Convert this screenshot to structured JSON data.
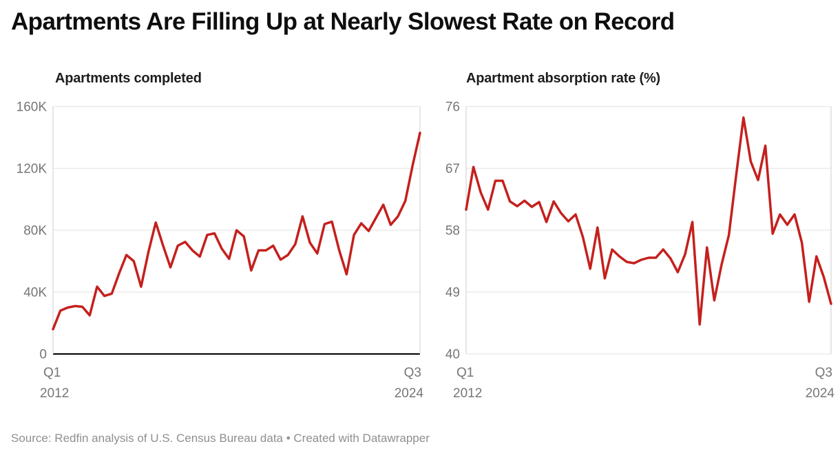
{
  "title": "Apartments Are Filling Up at Nearly Slowest Rate on Record",
  "footer": {
    "source": "Source: Redfin analysis of U.S. Census Bureau data • Created with Datawrapper"
  },
  "colors": {
    "line": "#c4201d",
    "grid": "#e2e2e2",
    "axis_edge": "#cccccc",
    "zero_baseline": "#000000",
    "tick_label": "#767676",
    "chart_title": "#1d1d1d",
    "title": "#0e0e0e",
    "footer": "#8f8f8f"
  },
  "chart_data": [
    {
      "id": "apartments-completed",
      "type": "line",
      "title": "Apartments completed",
      "unit": "apartments, thousands (K)",
      "frequency": "quarterly",
      "x_start": "Q1 2012",
      "x_end": "Q3 2024",
      "ylim": [
        0,
        160
      ],
      "grid": true,
      "legend_position": "none",
      "baseline_value": 0,
      "yticks": [
        {
          "v": 0,
          "label": "0"
        },
        {
          "v": 40,
          "label": "40K"
        },
        {
          "v": 80,
          "label": "80K"
        },
        {
          "v": 120,
          "label": "120K"
        },
        {
          "v": 160,
          "label": "160K"
        }
      ],
      "xticks": [
        {
          "position": "start",
          "quarter": "Q1",
          "year": "2012"
        },
        {
          "position": "end",
          "quarter": "Q3",
          "year": "2024"
        }
      ],
      "values": [
        16,
        28,
        30,
        31,
        30.5,
        25,
        43.5,
        37.5,
        39,
        52,
        64,
        60,
        43.5,
        66,
        85,
        70,
        56,
        70,
        72.5,
        67,
        63,
        77,
        78,
        68,
        61.5,
        80,
        76,
        54,
        67,
        67,
        70,
        61,
        64,
        71,
        89,
        72,
        65,
        84,
        85.5,
        67,
        51.5,
        77,
        84.5,
        79.5,
        88,
        96.5,
        83.5,
        89,
        99,
        122,
        143
      ]
    },
    {
      "id": "apartment-absorption-rate",
      "type": "line",
      "title": "Apartment absorption rate (%)",
      "unit": "percent",
      "frequency": "quarterly",
      "x_start": "Q1 2012",
      "x_end": "Q3 2024",
      "ylim": [
        40,
        76
      ],
      "grid": true,
      "legend_position": "none",
      "baseline_value": null,
      "yticks": [
        {
          "v": 40,
          "label": "40"
        },
        {
          "v": 49,
          "label": "49"
        },
        {
          "v": 58,
          "label": "58"
        },
        {
          "v": 67,
          "label": "67"
        },
        {
          "v": 76,
          "label": "76"
        }
      ],
      "xticks": [
        {
          "position": "start",
          "quarter": "Q1",
          "year": "2012"
        },
        {
          "position": "end",
          "quarter": "Q3",
          "year": "2024"
        }
      ],
      "values": [
        61,
        67.2,
        63.5,
        61,
        65.2,
        65.2,
        62.2,
        61.5,
        62.3,
        61.4,
        62.1,
        59.2,
        62.2,
        60.5,
        59.3,
        60.3,
        57,
        52.4,
        58.4,
        51,
        55.2,
        54.2,
        53.4,
        53.2,
        53.7,
        54,
        54,
        55.2,
        53.9,
        51.9,
        54.5,
        59.2,
        44.3,
        55.5,
        47.8,
        53,
        57.3,
        66,
        74.4,
        68,
        65.3,
        70.3,
        57.5,
        60.3,
        58.8,
        60.3,
        56.2,
        47.6,
        54.2,
        51.2,
        47.3
      ]
    }
  ]
}
